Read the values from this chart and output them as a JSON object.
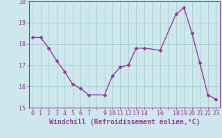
{
  "x": [
    0,
    1,
    2,
    3,
    4,
    5,
    6,
    7,
    9,
    10,
    11,
    12,
    13,
    14,
    16,
    18,
    19,
    20,
    21,
    22,
    23
  ],
  "y": [
    18.3,
    18.3,
    17.8,
    17.2,
    16.7,
    16.1,
    15.9,
    15.6,
    15.6,
    16.5,
    16.9,
    17.0,
    17.8,
    17.8,
    17.7,
    19.4,
    19.7,
    18.5,
    17.1,
    15.6,
    15.4
  ],
  "line_color": "#993399",
  "marker": "D",
  "marker_size": 2.5,
  "bg_color": "#cce8ec",
  "grid_color": "#aacccc",
  "xlabel": "Windchill (Refroidissement éolien,°C)",
  "xlabel_color": "#993399",
  "tick_color": "#993399",
  "spine_color": "#993399",
  "xlim": [
    -0.5,
    23.5
  ],
  "ylim": [
    15,
    20
  ],
  "yticks": [
    15,
    16,
    17,
    18,
    19,
    20
  ],
  "xtick_positions": [
    0,
    1,
    2,
    3,
    4,
    5,
    6,
    7,
    8,
    9,
    10,
    11,
    12,
    13,
    14,
    15,
    16,
    17,
    18,
    19,
    20,
    21,
    22,
    23
  ],
  "xtick_labels": [
    "0",
    "1",
    "2",
    "3",
    "4",
    "5",
    "6",
    "7",
    "",
    "9",
    "10",
    "11",
    "12",
    "13",
    "14",
    "",
    "16",
    "",
    "18",
    "19",
    "20",
    "21",
    "22",
    "23"
  ],
  "tick_fontsize": 6,
  "xlabel_fontsize": 7,
  "ytick_fontsize": 6
}
